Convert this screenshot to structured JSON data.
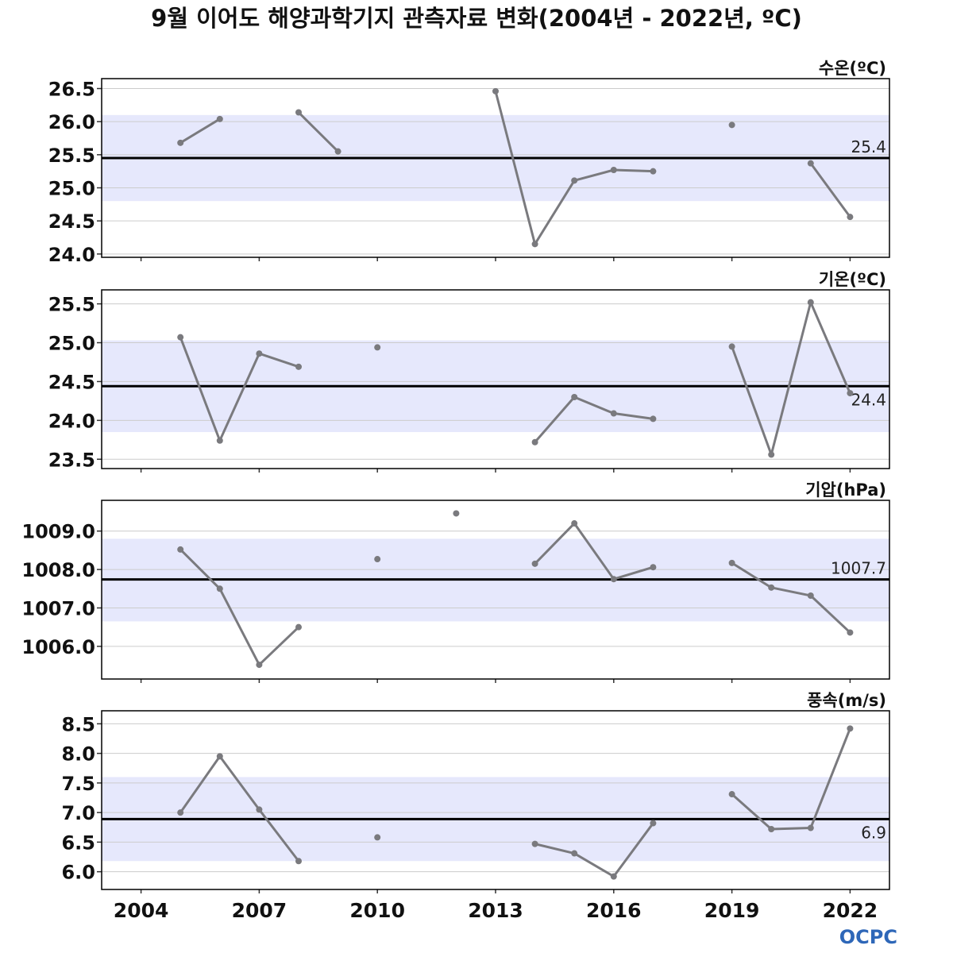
{
  "title": "9월 이어도 해양과학기지 관측자료 변화(2004년 - 2022년, ºC)",
  "logo_text": "OCPC",
  "colors": {
    "band": "#e6e8fc",
    "line": "#7a7a7e",
    "mean": "#000000",
    "grid": "#cccccc",
    "logo": "#2e67b8"
  },
  "chart_data": {
    "type": "line",
    "x_range": [
      2003,
      2023
    ],
    "x_ticks": [
      2004,
      2007,
      2010,
      2013,
      2016,
      2019,
      2022
    ],
    "x_tick_labels": [
      "2004",
      "2007",
      "2010",
      "2013",
      "2016",
      "2019",
      "2022"
    ],
    "panels": [
      {
        "label": "수온(ºC)",
        "ylim": [
          23.95,
          26.65
        ],
        "y_ticks": [
          24.0,
          24.5,
          25.0,
          25.5,
          26.0,
          26.5
        ],
        "y_tick_labels": [
          "24.0",
          "24.5",
          "25.0",
          "25.5",
          "26.0",
          "26.5"
        ],
        "mean": 25.45,
        "mean_label": "25.4",
        "mean_label_pos": "above",
        "band": [
          24.8,
          26.1
        ],
        "x": [
          2004,
          2005,
          2006,
          2007,
          2008,
          2009,
          2010,
          2011,
          2012,
          2013,
          2014,
          2015,
          2016,
          2017,
          2018,
          2019,
          2020,
          2021,
          2022
        ],
        "values": [
          null,
          25.68,
          26.04,
          null,
          26.14,
          25.55,
          null,
          null,
          null,
          26.46,
          24.15,
          25.11,
          25.27,
          25.25,
          null,
          25.95,
          null,
          25.37,
          24.56
        ]
      },
      {
        "label": "기온(ºC)",
        "ylim": [
          23.38,
          25.68
        ],
        "y_ticks": [
          23.5,
          24.0,
          24.5,
          25.0,
          25.5
        ],
        "y_tick_labels": [
          "23.5",
          "24.0",
          "24.5",
          "25.0",
          "25.5"
        ],
        "mean": 24.44,
        "mean_label": "24.4",
        "mean_label_pos": "below",
        "band": [
          23.85,
          25.03
        ],
        "x": [
          2004,
          2005,
          2006,
          2007,
          2008,
          2009,
          2010,
          2011,
          2012,
          2013,
          2014,
          2015,
          2016,
          2017,
          2018,
          2019,
          2020,
          2021,
          2022
        ],
        "values": [
          null,
          25.07,
          23.74,
          24.86,
          24.69,
          null,
          24.94,
          null,
          null,
          null,
          23.72,
          24.3,
          24.09,
          24.02,
          null,
          24.95,
          23.56,
          25.52,
          24.35
        ]
      },
      {
        "label": "기압(hPa)",
        "ylim": [
          1005.15,
          1009.8
        ],
        "y_ticks": [
          1006.0,
          1007.0,
          1008.0,
          1009.0
        ],
        "y_tick_labels": [
          "1006.0",
          "1007.0",
          "1008.0",
          "1009.0"
        ],
        "mean": 1007.74,
        "mean_label": "1007.7",
        "mean_label_pos": "above",
        "band": [
          1006.65,
          1008.8
        ],
        "x": [
          2004,
          2005,
          2006,
          2007,
          2008,
          2009,
          2010,
          2011,
          2012,
          2013,
          2014,
          2015,
          2016,
          2017,
          2018,
          2019,
          2020,
          2021,
          2022
        ],
        "values": [
          null,
          1008.52,
          1007.5,
          1005.52,
          1006.5,
          null,
          1008.27,
          null,
          1009.46,
          null,
          1008.15,
          1009.2,
          1007.75,
          1008.06,
          null,
          1008.17,
          1007.53,
          1007.32,
          1006.36
        ]
      },
      {
        "label": "풍속(m/s)",
        "ylim": [
          5.7,
          8.72
        ],
        "y_ticks": [
          6.0,
          6.5,
          7.0,
          7.5,
          8.0,
          8.5
        ],
        "y_tick_labels": [
          "6.0",
          "6.5",
          "7.0",
          "7.5",
          "8.0",
          "8.5"
        ],
        "mean": 6.89,
        "mean_label": "6.9",
        "mean_label_pos": "below",
        "band": [
          6.18,
          7.6
        ],
        "x": [
          2004,
          2005,
          2006,
          2007,
          2008,
          2009,
          2010,
          2011,
          2012,
          2013,
          2014,
          2015,
          2016,
          2017,
          2018,
          2019,
          2020,
          2021,
          2022
        ],
        "values": [
          null,
          7.0,
          7.95,
          7.05,
          6.18,
          null,
          6.58,
          null,
          null,
          null,
          6.47,
          6.31,
          5.92,
          6.82,
          null,
          7.31,
          6.72,
          6.74,
          8.42
        ]
      }
    ]
  }
}
